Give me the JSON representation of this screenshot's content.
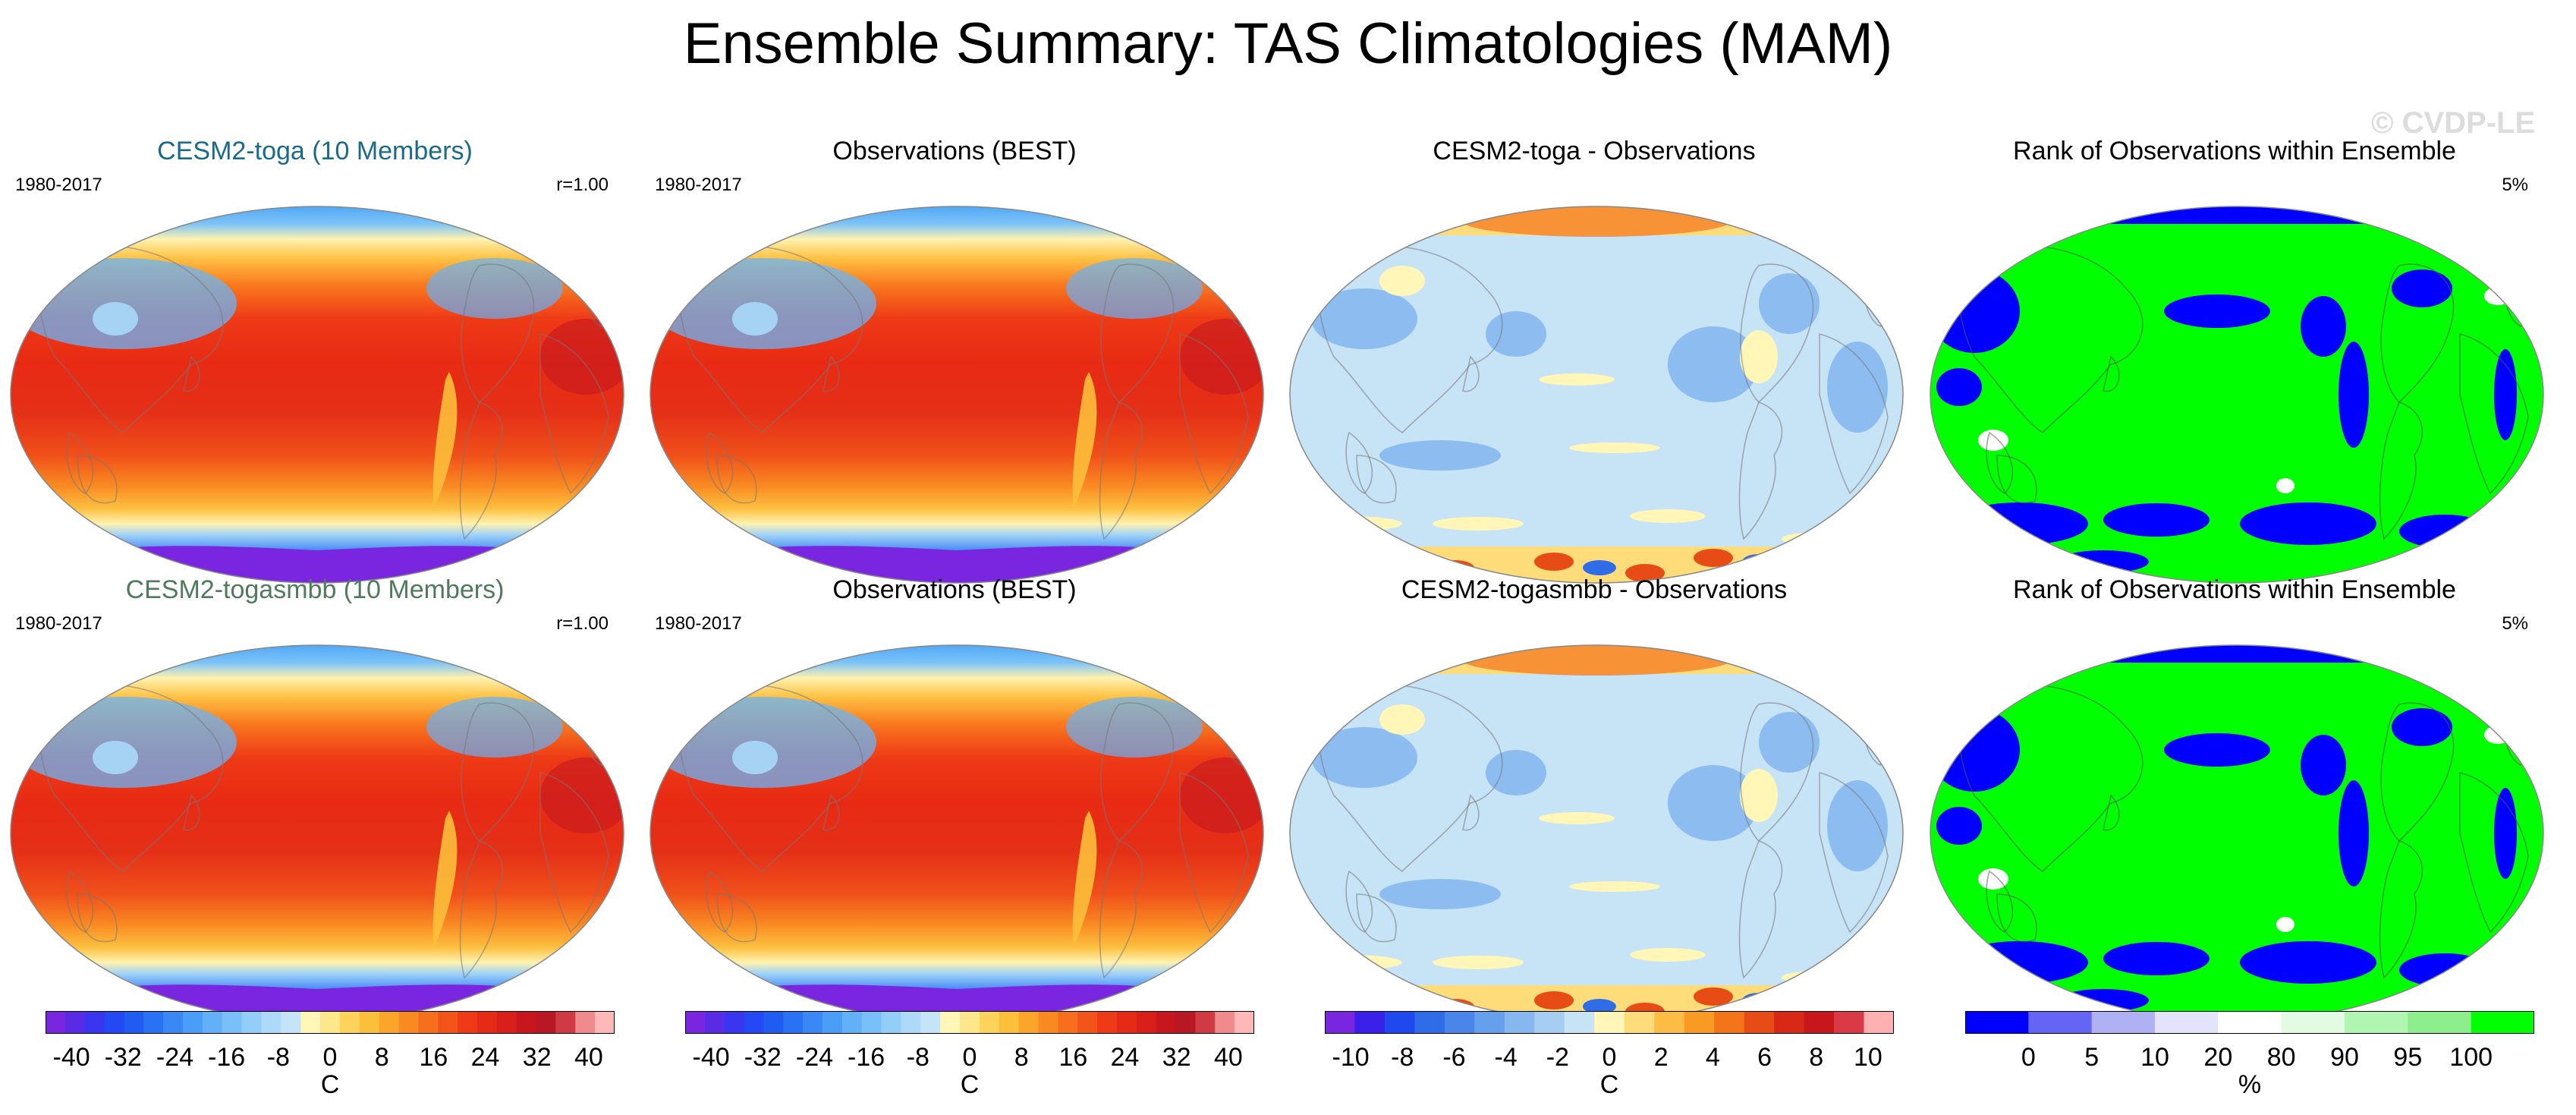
{
  "title": "Ensemble Summary: TAS Climatologies (MAM)",
  "watermark": "© CVDP-LE",
  "colors": {
    "toga_title": "#1a6b8a",
    "togasmbb_title": "#4f7a5c",
    "rank_green": "#00ff00",
    "rank_blue": "#0000ff"
  },
  "panels": [
    {
      "title": "CESM2-toga (10 Members)",
      "period": "1980-2017",
      "corner": "r=1.00",
      "type": "temperature",
      "title_color": "toga_title"
    },
    {
      "title": "Observations (BEST)",
      "period": "1980-2017",
      "corner": "",
      "type": "temperature",
      "title_color": ""
    },
    {
      "title": "CESM2-toga - Observations",
      "period": "",
      "corner": "",
      "type": "difference",
      "title_color": ""
    },
    {
      "title": "Rank of Observations within Ensemble",
      "period": "",
      "corner": "5%",
      "type": "rank",
      "title_color": ""
    },
    {
      "title": "CESM2-togasmbb (10 Members)",
      "period": "1980-2017",
      "corner": "r=1.00",
      "type": "temperature",
      "title_color": "togasmbb_title"
    },
    {
      "title": "Observations (BEST)",
      "period": "1980-2017",
      "corner": "",
      "type": "temperature",
      "title_color": ""
    },
    {
      "title": "CESM2-togasmbb - Observations",
      "period": "",
      "corner": "",
      "type": "difference",
      "title_color": ""
    },
    {
      "title": "Rank of Observations within Ensemble",
      "period": "",
      "corner": "5%",
      "type": "rank",
      "title_color": ""
    }
  ],
  "colorbars": [
    {
      "name": "temperature-colorbar-1",
      "unit": "C",
      "ticks": [
        "-40",
        "-32",
        "-24",
        "-16",
        "-8",
        "0",
        "8",
        "16",
        "24",
        "32",
        "40"
      ],
      "range": [
        -44,
        44
      ],
      "colors": [
        "#7a25e0",
        "#5a2be5",
        "#3a35ee",
        "#2448f3",
        "#1e5cf2",
        "#2a72f4",
        "#3a88f5",
        "#4b9ef7",
        "#62b0f8",
        "#7ac0f8",
        "#93cef8",
        "#aed9f8",
        "#c6e4f7",
        "#fff6b8",
        "#fee68a",
        "#fdd35c",
        "#fcbf3a",
        "#fba52a",
        "#f98a22",
        "#f66f1c",
        "#f35418",
        "#ee3a16",
        "#e52a16",
        "#d81f1a",
        "#c8161e",
        "#b81724",
        "#d03a45",
        "#ef8a8d",
        "#ffb8b8"
      ]
    },
    {
      "name": "temperature-colorbar-2",
      "unit": "C",
      "ticks": [
        "-40",
        "-32",
        "-24",
        "-16",
        "-8",
        "0",
        "8",
        "16",
        "24",
        "32",
        "40"
      ],
      "range": [
        -44,
        44
      ],
      "colors": [
        "#7a25e0",
        "#5a2be5",
        "#3a35ee",
        "#2448f3",
        "#1e5cf2",
        "#2a72f4",
        "#3a88f5",
        "#4b9ef7",
        "#62b0f8",
        "#7ac0f8",
        "#93cef8",
        "#aed9f8",
        "#c6e4f7",
        "#fff6b8",
        "#fee68a",
        "#fdd35c",
        "#fcbf3a",
        "#fba52a",
        "#f98a22",
        "#f66f1c",
        "#f35418",
        "#ee3a16",
        "#e52a16",
        "#d81f1a",
        "#c8161e",
        "#b81724",
        "#d03a45",
        "#ef8a8d",
        "#ffb8b8"
      ]
    },
    {
      "name": "difference-colorbar",
      "unit": "C",
      "ticks": [
        "-10",
        "-8",
        "-6",
        "-4",
        "-2",
        "0",
        "2",
        "4",
        "6",
        "8",
        "10"
      ],
      "range": [
        -11,
        11
      ],
      "colors": [
        "#7a25e0",
        "#3a20e8",
        "#2048ef",
        "#2f6ce8",
        "#4a86ea",
        "#66a0ec",
        "#86b7ef",
        "#a7cdf2",
        "#c7e3f6",
        "#fff6b8",
        "#fedc7a",
        "#fdbd45",
        "#f99a24",
        "#f37419",
        "#e84c16",
        "#d82917",
        "#c8171c",
        "#d93a45",
        "#ffb0b0"
      ]
    },
    {
      "name": "rank-colorbar",
      "unit": "%",
      "ticks": [
        "0",
        "5",
        "10",
        "20",
        "80",
        "90",
        "95",
        "100"
      ],
      "range": [
        -10,
        110
      ],
      "colors": [
        "#0000ff",
        "#6565f5",
        "#b0b0f5",
        "#e3e3fb",
        "#ffffff",
        "#e3fbe3",
        "#b0f5b0",
        "#8cef8c",
        "#00ff00"
      ]
    }
  ]
}
